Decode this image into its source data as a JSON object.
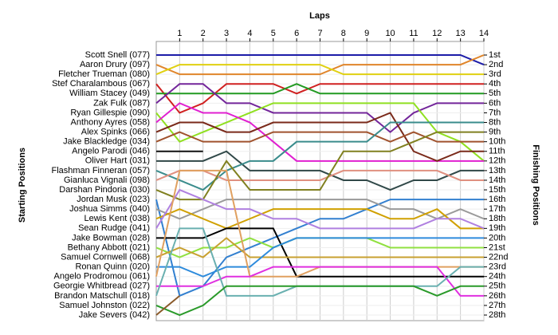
{
  "chart_data": {
    "type": "lap",
    "title": "Laps",
    "y_label": "Starting Positions",
    "y2_label": "Finishing Positions",
    "xlim": [
      0,
      14
    ],
    "xticks": [
      1,
      2,
      3,
      4,
      5,
      6,
      7,
      8,
      9,
      10,
      11,
      12,
      13,
      14
    ],
    "ylim": [
      1,
      28
    ],
    "inverted": true,
    "grid": true,
    "y2ticks": [
      {
        "value": 1,
        "label": "1st"
      },
      {
        "value": 2,
        "label": "2nd"
      },
      {
        "value": 3,
        "label": "3rd"
      },
      {
        "value": 4,
        "label": "4th"
      },
      {
        "value": 5,
        "label": "5th"
      },
      {
        "value": 6,
        "label": "6th"
      },
      {
        "value": 7,
        "label": "7th"
      },
      {
        "value": 8,
        "label": "8th"
      },
      {
        "value": 9,
        "label": "9th"
      },
      {
        "value": 10,
        "label": "10th"
      },
      {
        "value": 11,
        "label": "11th"
      },
      {
        "value": 12,
        "label": "12th"
      },
      {
        "value": 13,
        "label": "13th"
      },
      {
        "value": 14,
        "label": "14th"
      },
      {
        "value": 15,
        "label": "15th"
      },
      {
        "value": 16,
        "label": "16th"
      },
      {
        "value": 17,
        "label": "17th"
      },
      {
        "value": 18,
        "label": "18th"
      },
      {
        "value": 19,
        "label": "19th"
      },
      {
        "value": 20,
        "label": "20th"
      },
      {
        "value": 21,
        "label": "21st"
      },
      {
        "value": 22,
        "label": "22nd"
      },
      {
        "value": 23,
        "label": "23rd"
      },
      {
        "value": 24,
        "label": "24th"
      },
      {
        "value": 25,
        "label": "25th"
      },
      {
        "value": 26,
        "label": "26th"
      },
      {
        "value": 27,
        "label": "27th"
      },
      {
        "value": 28,
        "label": "28th"
      }
    ],
    "series": [
      {
        "name": "Scott Snell (077)",
        "color": "#1c1ca8",
        "values": [
          1,
          1,
          1,
          1,
          1,
          1,
          1,
          1,
          1,
          1,
          1,
          1,
          1,
          1,
          2
        ]
      },
      {
        "name": "Aaron Drury (097)",
        "color": "#e0852a",
        "values": [
          2,
          3,
          3,
          3,
          3,
          3,
          3,
          3,
          2,
          2,
          2,
          2,
          2,
          2,
          1
        ]
      },
      {
        "name": "Fletcher Trueman (080)",
        "color": "#e0d010",
        "values": [
          3,
          2,
          2,
          2,
          2,
          2,
          2,
          2,
          3,
          3,
          3,
          3,
          3,
          3,
          3
        ]
      },
      {
        "name": "Stef Charalambous (067)",
        "color": "#d02020",
        "values": [
          4,
          7,
          6,
          4,
          4,
          4,
          5,
          4,
          4,
          4,
          4,
          4,
          4,
          4,
          4
        ]
      },
      {
        "name": "William Stacey (049)",
        "color": "#229a22",
        "values": [
          5,
          5,
          5,
          5,
          5,
          5,
          4,
          5,
          5,
          5,
          5,
          5,
          5,
          5,
          5
        ]
      },
      {
        "name": "Zak Fulk (087)",
        "color": "#73259a",
        "values": [
          6,
          4,
          4,
          6,
          6,
          7,
          7,
          7,
          7,
          7,
          9,
          7,
          6,
          6,
          6
        ]
      },
      {
        "name": "Ryan Gillespie (090)",
        "color": "#90e020",
        "values": [
          7,
          10,
          9,
          8,
          7,
          6,
          6,
          6,
          6,
          6,
          6,
          6,
          9,
          10,
          12
        ]
      },
      {
        "name": "Anthony Ayres (058)",
        "color": "#e020d0",
        "values": [
          8,
          6,
          7,
          7,
          8,
          10,
          12,
          12,
          12,
          12,
          12,
          12,
          12,
          12,
          12
        ]
      },
      {
        "name": "Alex Spinks (066)",
        "color": "#7a2a1a",
        "values": [
          9,
          8,
          8,
          9,
          9,
          8,
          8,
          8,
          8,
          8,
          7,
          11,
          12,
          11,
          11
        ]
      },
      {
        "name": "Jake Blackledge (034)",
        "color": "#a0522d",
        "values": [
          10,
          9,
          10,
          10,
          10,
          9,
          9,
          9,
          9,
          9,
          10,
          9,
          10,
          10,
          10
        ]
      },
      {
        "name": "Angelo Parodi (046)",
        "color": "#101010",
        "values": [
          11,
          11,
          11,
          null,
          null,
          null,
          null,
          null,
          null,
          null,
          null,
          null,
          null,
          null,
          null
        ]
      },
      {
        "name": "Oliver Hart (031)",
        "color": "#304848",
        "values": [
          12,
          12,
          12,
          11,
          13,
          13,
          13,
          13,
          14,
          14,
          15,
          14,
          14,
          13,
          13
        ]
      },
      {
        "name": "Flashman Finneran (057)",
        "color": "#3a8c8c",
        "values": [
          13,
          14,
          15,
          13,
          12,
          12,
          10,
          10,
          10,
          10,
          8,
          8,
          8,
          8,
          8
        ]
      },
      {
        "name": "Gianluca Vignali (098)",
        "color": "#e09080",
        "values": [
          14,
          13,
          13,
          14,
          14,
          14,
          14,
          14,
          13,
          13,
          13,
          13,
          13,
          14,
          14
        ]
      },
      {
        "name": "Darshan Pindoria (030)",
        "color": "#808020",
        "values": [
          15,
          16,
          16,
          12,
          15,
          15,
          15,
          15,
          11,
          11,
          11,
          10,
          9,
          9,
          9
        ]
      },
      {
        "name": "Jordan Musk (023)",
        "color": "#3380d0",
        "values": [
          16,
          26,
          25,
          22,
          21,
          20,
          19,
          18,
          18,
          17,
          16,
          16,
          16,
          16,
          16
        ]
      },
      {
        "name": "Joshua Simms (040)",
        "color": "#9a9a9a",
        "values": [
          17,
          18,
          17,
          16,
          16,
          16,
          16,
          16,
          16,
          16,
          17,
          17,
          18,
          17,
          18
        ]
      },
      {
        "name": "Lewis Kent (038)",
        "color": "#d0a000",
        "values": [
          18,
          17,
          18,
          19,
          18,
          17,
          17,
          17,
          17,
          17,
          18,
          18,
          17,
          19,
          19
        ]
      },
      {
        "name": "Sean Rudge (041)",
        "color": "#b080e0",
        "values": [
          19,
          15,
          16,
          17,
          17,
          18,
          18,
          19,
          19,
          19,
          19,
          19,
          18,
          18,
          19
        ]
      },
      {
        "name": "Jake Bowman (028)",
        "color": "#000000",
        "values": [
          20,
          20,
          20,
          19,
          19,
          19,
          24,
          24,
          24,
          24,
          24,
          24,
          24,
          24,
          24
        ]
      },
      {
        "name": "Bethany Abbott (021)",
        "color": "#90e040",
        "values": [
          21,
          22,
          21,
          21,
          20,
          21,
          20,
          20,
          20,
          20,
          21,
          21,
          21,
          21,
          21
        ]
      },
      {
        "name": "Samuel Cornwell (068)",
        "color": "#c8a030",
        "values": [
          22,
          21,
          22,
          20,
          22,
          22,
          22,
          22,
          22,
          22,
          22,
          22,
          22,
          22,
          22
        ]
      },
      {
        "name": "Ronan Quinn (020)",
        "color": "#2e8bdc",
        "values": [
          23,
          23,
          24,
          23,
          23,
          21,
          20,
          20,
          20,
          20,
          20,
          20,
          20,
          20,
          20
        ]
      },
      {
        "name": "Angelo Prodromou (061)",
        "color": "#e0a060",
        "values": [
          24,
          13,
          13,
          13,
          24,
          24,
          24,
          23,
          23,
          23,
          23,
          23,
          23,
          23,
          23
        ]
      },
      {
        "name": "Georgie Whitbread (027)",
        "color": "#e030e0",
        "values": [
          25,
          25,
          25,
          24,
          24,
          23,
          23,
          23,
          23,
          23,
          23,
          23,
          23,
          26,
          26
        ]
      },
      {
        "name": "Brandon Matschull (018)",
        "color": "#6ab0b0",
        "values": [
          26,
          19,
          19,
          26,
          26,
          26,
          25,
          25,
          25,
          25,
          25,
          25,
          25,
          23,
          23
        ]
      },
      {
        "name": "Samuel Johnston (022)",
        "color": "#2a9a2a",
        "values": [
          27,
          28,
          27,
          25,
          25,
          25,
          25,
          25,
          25,
          25,
          25,
          25,
          26,
          25,
          25
        ]
      },
      {
        "name": "Jake Severs (042)",
        "color": "#8a5a2a",
        "values": [
          28,
          26,
          null,
          null,
          null,
          null,
          null,
          null,
          null,
          null,
          null,
          null,
          null,
          null,
          null
        ]
      }
    ]
  }
}
